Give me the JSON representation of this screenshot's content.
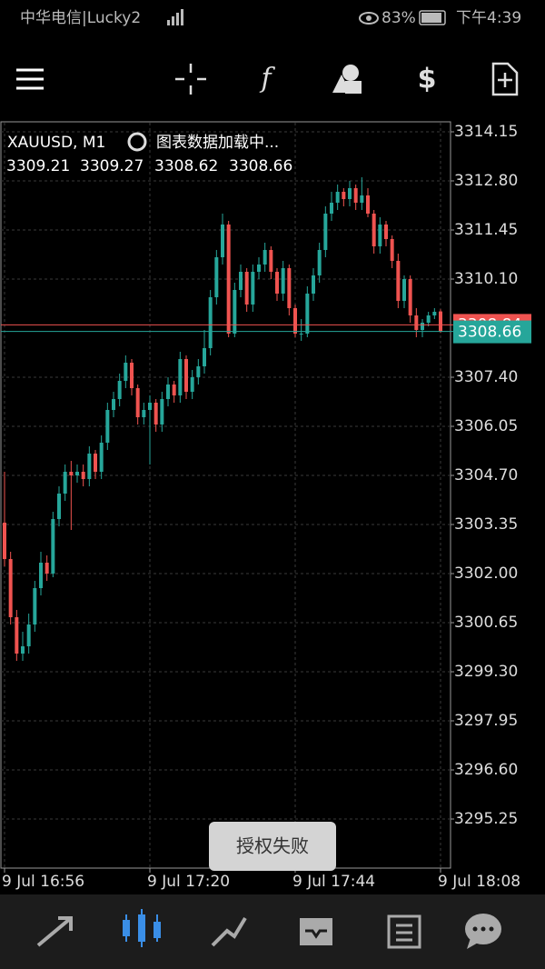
{
  "status_bar": {
    "carrier": "中华电信|Lucky2",
    "battery": "83%",
    "time": "下午4:39"
  },
  "toast": "授权失败",
  "chart_data": {
    "type": "candlestick",
    "title": "XAUUSD, M1",
    "subtitle": "图表数据加载中...",
    "up_color": "#26a69a",
    "down_color": "#ef5350",
    "grid": true,
    "ylim": [
      3293.9,
      3314.4
    ],
    "yticks": [
      3314.15,
      {
        "value": 3312.8,
        "label": "3312.80"
      },
      3311.45,
      {
        "value": 3310.1,
        "label": "3310.10"
      },
      {
        "value": 3307.4,
        "label": "3307.40"
      },
      3306.05,
      {
        "value": 3304.7,
        "label": "3304.70"
      },
      3303.35,
      {
        "value": 3302.0,
        "label": "3302.00"
      },
      3300.65,
      {
        "value": 3299.3,
        "label": "3299.30"
      },
      3297.95,
      {
        "value": 3296.6,
        "label": "3296.60"
      },
      3295.25
    ],
    "xlim": [
      0,
      72
    ],
    "xticks": [
      {
        "value": 0,
        "label": "9 Jul 16:56"
      },
      {
        "value": 24,
        "label": "9 Jul 17:20"
      },
      {
        "value": 48,
        "label": "9 Jul 17:44"
      },
      {
        "value": 72,
        "label": "9 Jul 18:08"
      }
    ],
    "ask": 3308.84,
    "open": [
      3303.4,
      3302.4,
      3300.8,
      3299.8,
      3300.0,
      3300.6,
      3301.6,
      3302.3,
      3302.0,
      3303.5,
      3304.2,
      3304.8,
      3304.7,
      3304.8,
      3304.6,
      3305.3,
      3304.8,
      3305.6,
      3306.5,
      3306.8,
      3307.3,
      3307.8,
      3307.1,
      3306.3,
      3306.5,
      3306.7,
      3306.1,
      3306.8,
      3307.2,
      3306.9,
      3307.9,
      3307.0,
      3307.4,
      3307.7,
      3308.2,
      3309.6,
      3310.7,
      3311.6,
      3308.6,
      3309.8,
      3310.3,
      3309.4,
      3310.3,
      3310.5,
      3310.9,
      3310.3,
      3309.7,
      3310.4,
      3309.3,
      3308.6,
      3308.6,
      3309.7,
      3310.2,
      3310.9,
      3311.9,
      3312.2,
      3312.5,
      3312.3,
      3312.6,
      3312.2,
      3312.4,
      3311.9,
      3311.0,
      3311.6,
      3311.2,
      3310.6,
      3309.5,
      3310.1,
      3309.1,
      3308.7,
      3308.9,
      3309.1,
      3309.21
    ],
    "high": [
      3304.8,
      3302.6,
      3301.0,
      3300.4,
      3300.9,
      3301.8,
      3302.6,
      3302.5,
      3303.7,
      3304.4,
      3305.0,
      3305.1,
      3305.0,
      3305.0,
      3305.5,
      3305.4,
      3305.8,
      3306.7,
      3307.0,
      3307.5,
      3308.0,
      3307.9,
      3307.2,
      3306.7,
      3306.9,
      3306.8,
      3307.0,
      3307.4,
      3307.3,
      3308.1,
      3308.0,
      3307.6,
      3307.9,
      3308.7,
      3309.8,
      3310.9,
      3311.9,
      3311.7,
      3310.0,
      3310.5,
      3310.4,
      3310.5,
      3310.7,
      3311.1,
      3311.0,
      3310.4,
      3310.6,
      3310.5,
      3309.4,
      3309.0,
      3309.9,
      3310.4,
      3311.1,
      3312.1,
      3312.5,
      3312.7,
      3312.6,
      3312.8,
      3312.7,
      3312.9,
      3312.6,
      3312.0,
      3311.8,
      3311.7,
      3311.3,
      3310.8,
      3310.2,
      3310.2,
      3309.3,
      3309.0,
      3309.2,
      3309.3,
      3309.27
    ],
    "low": [
      3302.2,
      3300.6,
      3299.6,
      3299.6,
      3299.8,
      3300.4,
      3301.4,
      3301.8,
      3301.9,
      3303.3,
      3304.0,
      3303.2,
      3304.5,
      3304.4,
      3304.4,
      3304.6,
      3304.6,
      3305.4,
      3306.3,
      3306.6,
      3307.1,
      3306.9,
      3306.1,
      3306.1,
      3305.0,
      3305.9,
      3305.9,
      3306.6,
      3306.7,
      3306.7,
      3306.8,
      3306.8,
      3307.2,
      3307.5,
      3308.0,
      3309.4,
      3310.5,
      3308.5,
      3308.5,
      3309.6,
      3309.2,
      3309.2,
      3310.1,
      3310.3,
      3310.1,
      3309.5,
      3309.5,
      3309.1,
      3308.5,
      3308.4,
      3308.5,
      3309.5,
      3310.0,
      3310.7,
      3311.7,
      3312.0,
      3312.1,
      3312.1,
      3312.0,
      3312.0,
      3311.8,
      3310.8,
      3310.8,
      3311.0,
      3310.4,
      3309.3,
      3309.3,
      3308.9,
      3308.5,
      3308.5,
      3308.8,
      3309.0,
      3308.62
    ],
    "close": [
      3302.4,
      3300.8,
      3299.8,
      3300.0,
      3300.6,
      3301.6,
      3302.3,
      3302.0,
      3303.5,
      3304.2,
      3304.8,
      3304.7,
      3304.8,
      3304.6,
      3305.3,
      3304.8,
      3305.6,
      3306.5,
      3306.8,
      3307.3,
      3307.8,
      3307.1,
      3306.3,
      3306.5,
      3306.7,
      3306.1,
      3306.8,
      3307.2,
      3306.9,
      3307.9,
      3307.0,
      3307.4,
      3307.7,
      3308.2,
      3309.6,
      3310.7,
      3311.6,
      3308.6,
      3309.8,
      3310.3,
      3309.4,
      3310.3,
      3310.5,
      3310.9,
      3310.3,
      3309.7,
      3310.4,
      3309.3,
      3308.6,
      3308.6,
      3309.7,
      3310.2,
      3310.9,
      3311.9,
      3312.2,
      3312.5,
      3312.3,
      3312.6,
      3312.2,
      3312.4,
      3311.9,
      3311.0,
      3311.6,
      3311.2,
      3310.6,
      3309.5,
      3310.1,
      3309.1,
      3308.7,
      3308.9,
      3309.1,
      3309.2,
      3308.66
    ]
  }
}
